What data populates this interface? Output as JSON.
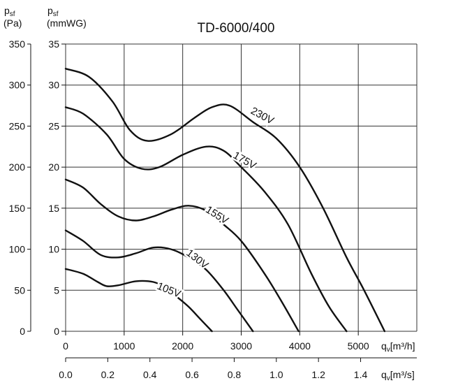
{
  "chart_data": {
    "type": "line",
    "title": "TD-6000/400",
    "y_left_label": {
      "symbol": "p",
      "subscript": "sf",
      "unit": "(Pa)"
    },
    "y_right_label": {
      "symbol": "p",
      "subscript": "sf",
      "unit": "(mmWG)"
    },
    "x_top_label": {
      "symbol": "q",
      "subscript": "v",
      "unit": "[m³/h]"
    },
    "x_bottom_label": {
      "symbol": "q",
      "subscript": "v",
      "unit": "[m³/s]"
    },
    "x_m3h_ticks": [
      "0",
      "1000",
      "2000",
      "3000",
      "4000",
      "5000"
    ],
    "x_m3s_ticks": [
      "0.0",
      "0.2",
      "0.4",
      "0.6",
      "0.8",
      "1.0",
      "1.2",
      "1.4"
    ],
    "y_pa_ticks": [
      "0",
      "50",
      "100",
      "150",
      "200",
      "250",
      "300",
      "350"
    ],
    "y_mmwg_ticks": [
      "0",
      "5",
      "10",
      "15",
      "20",
      "25",
      "30",
      "35"
    ],
    "xlim": [
      0,
      6000
    ],
    "ylim": [
      0,
      35
    ],
    "y_units": "mmWG",
    "grid": true,
    "series": [
      {
        "name": "230V",
        "x": [
          0,
          400,
          800,
          1100,
          1400,
          1800,
          2200,
          2500,
          2800,
          3200,
          3600,
          4000,
          4400,
          4800,
          5100,
          5450
        ],
        "y": [
          32,
          31,
          28,
          24.5,
          23.2,
          24,
          26,
          27.3,
          27.5,
          25.5,
          23.5,
          20,
          15,
          9,
          5,
          0
        ]
      },
      {
        "name": "175V",
        "x": [
          0,
          300,
          700,
          1000,
          1300,
          1600,
          2000,
          2400,
          2700,
          3000,
          3400,
          3800,
          4200,
          4500,
          4800
        ],
        "y": [
          27.3,
          26.5,
          24,
          21,
          19.8,
          20,
          21.5,
          22.5,
          22,
          20,
          17,
          13,
          7,
          3,
          0
        ]
      },
      {
        "name": "155V",
        "x": [
          0,
          300,
          600,
          900,
          1200,
          1500,
          1800,
          2100,
          2400,
          2700,
          3000,
          3400,
          3700,
          3980
        ],
        "y": [
          18.5,
          17.5,
          15.5,
          14,
          13.5,
          14,
          14.8,
          15.3,
          14.7,
          13,
          11,
          7,
          3.5,
          0
        ]
      },
      {
        "name": "130V",
        "x": [
          0,
          300,
          600,
          900,
          1200,
          1500,
          1800,
          2100,
          2400,
          2700,
          2950,
          3200
        ],
        "y": [
          12.3,
          11,
          9.3,
          9,
          9.5,
          10.2,
          10,
          9,
          7.5,
          5,
          2.5,
          0
        ]
      },
      {
        "name": "105V",
        "x": [
          0,
          300,
          550,
          700,
          900,
          1200,
          1500,
          1700,
          1900,
          2100,
          2300,
          2500
        ],
        "y": [
          7.6,
          7,
          6,
          5.5,
          5.6,
          6.1,
          6,
          5.3,
          4.2,
          3,
          1.5,
          0
        ]
      }
    ],
    "line_color": "#111111"
  }
}
